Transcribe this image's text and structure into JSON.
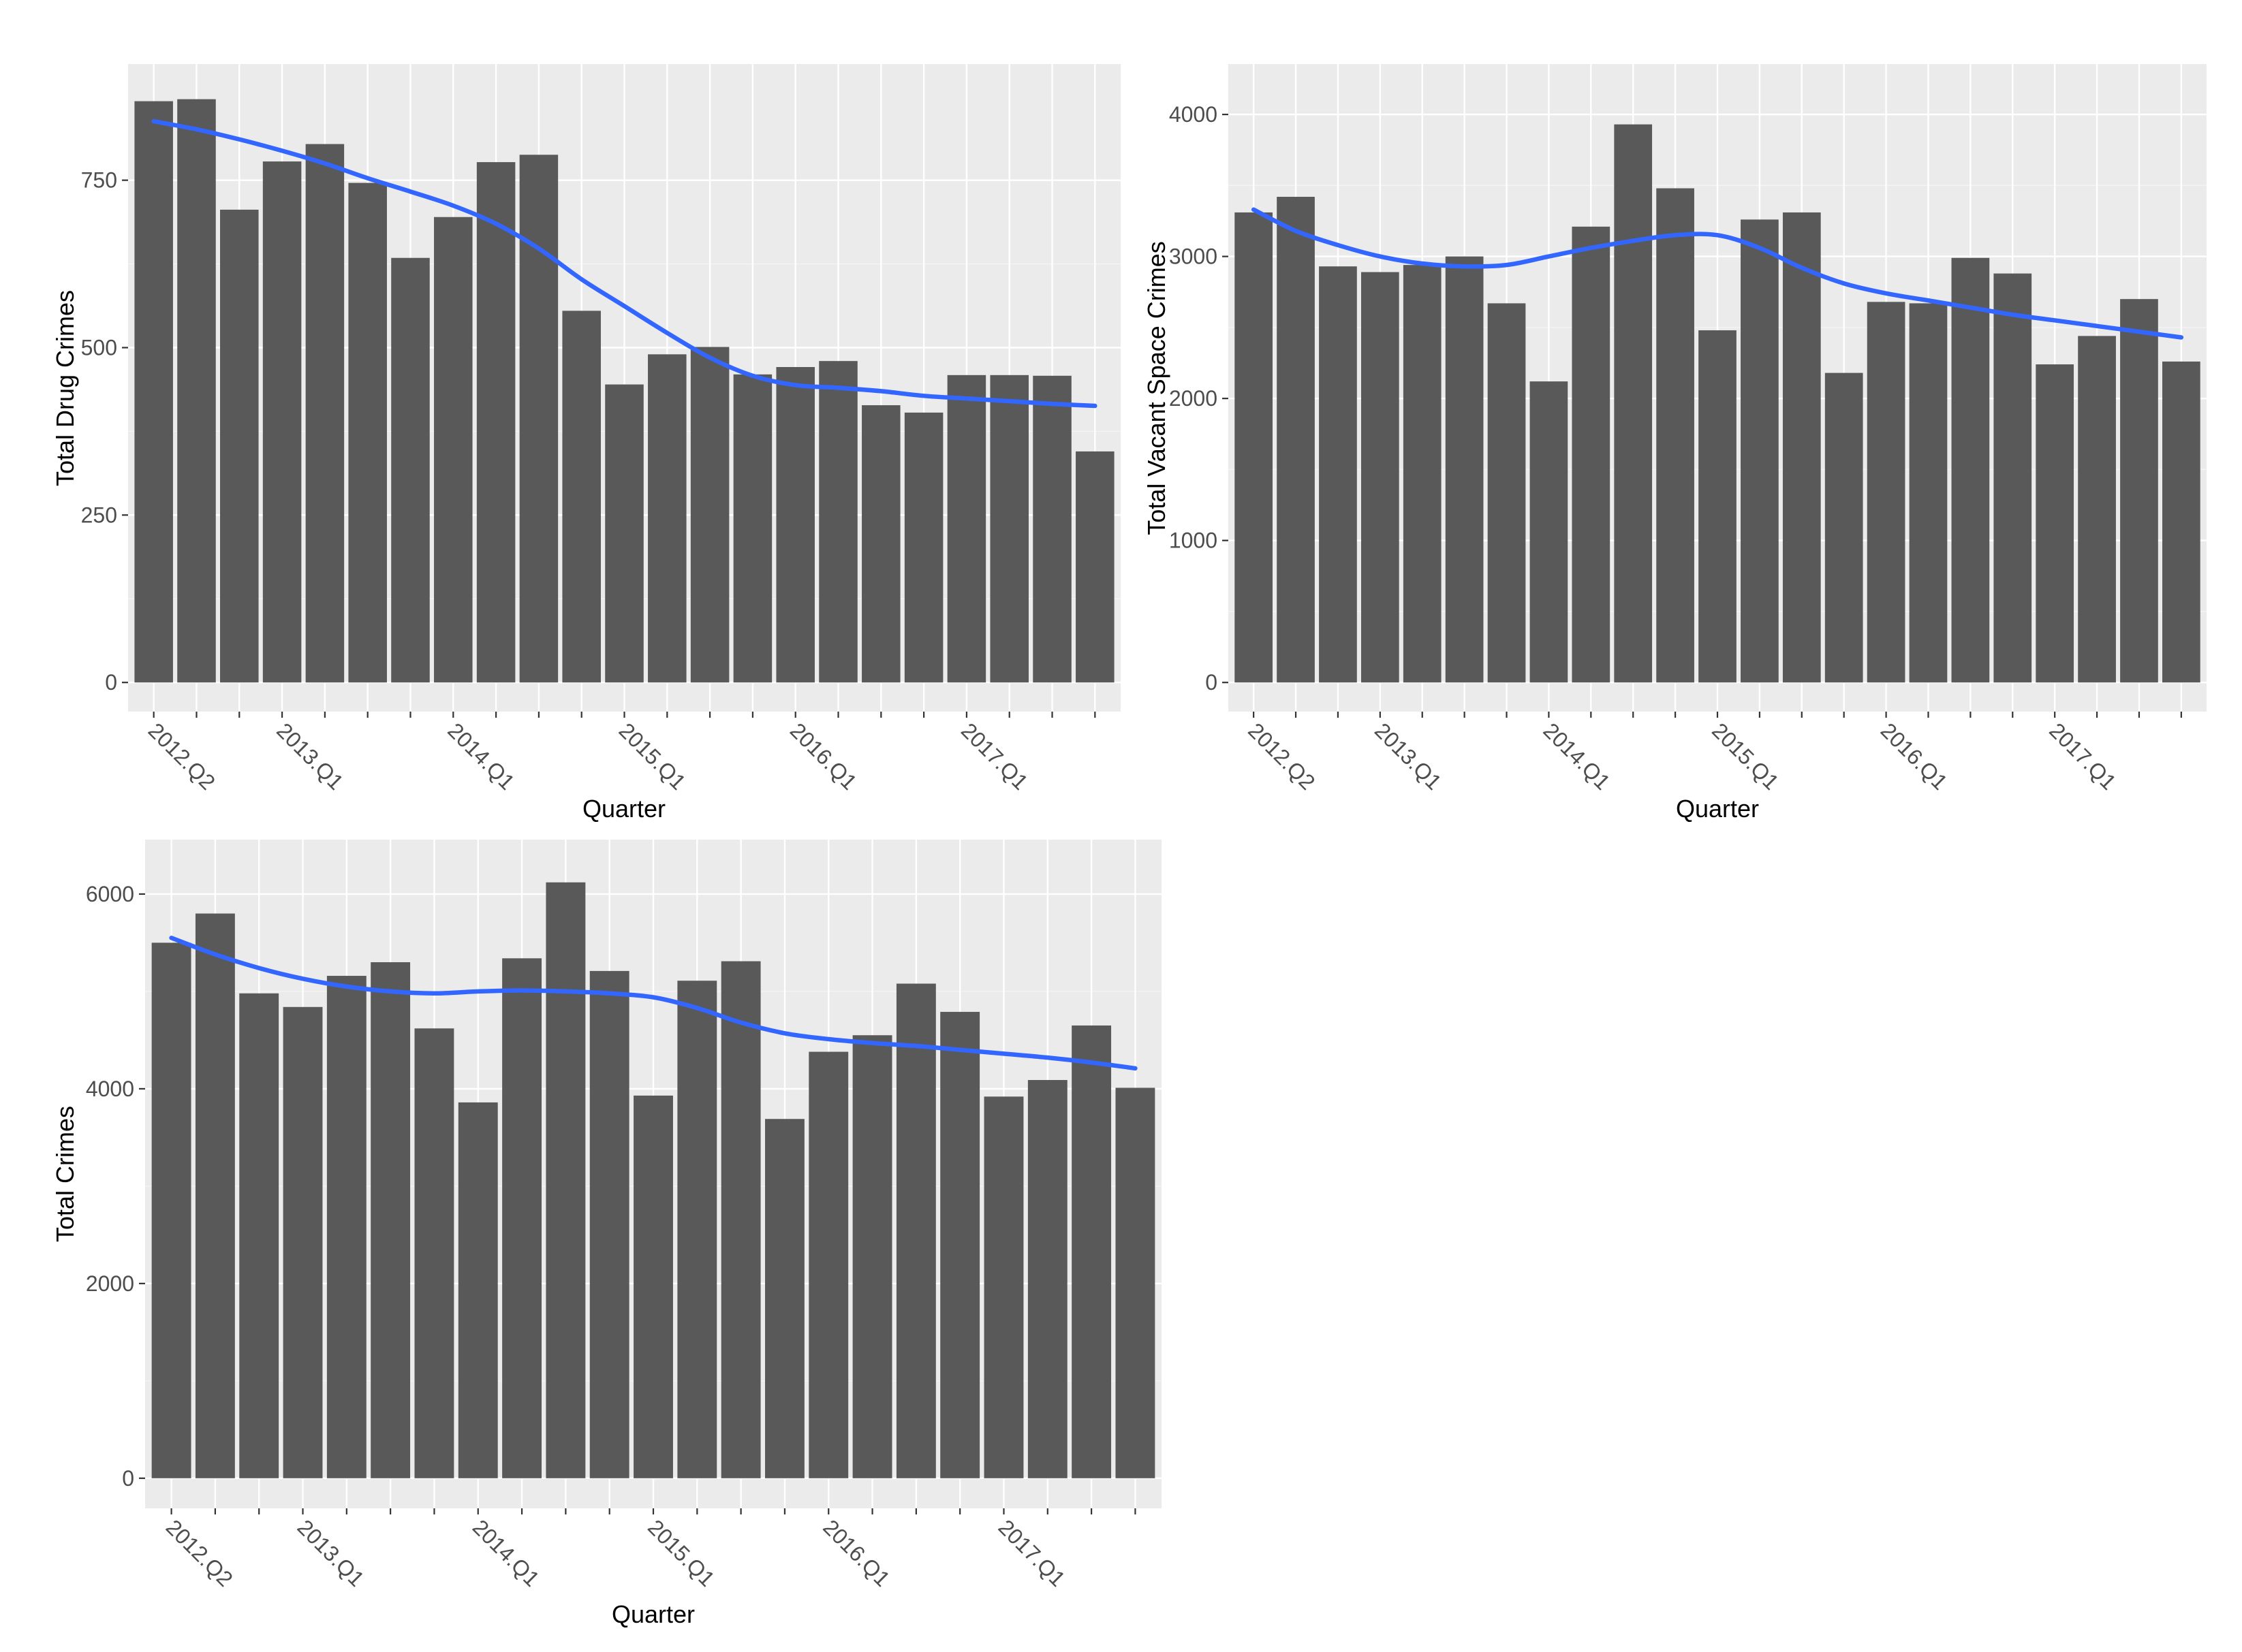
{
  "colors": {
    "panel_background": "#ebebeb",
    "grid_major": "#ffffff",
    "grid_minor": "#f5f5f5",
    "bar_fill": "#595959",
    "trend_line": "#3366ff",
    "tick_text": "#4d4d4d",
    "title_text": "#000000"
  },
  "quarters": [
    "2012.Q2",
    "2012.Q3",
    "2012.Q4",
    "2013.Q1",
    "2013.Q2",
    "2013.Q3",
    "2013.Q4",
    "2014.Q1",
    "2014.Q2",
    "2014.Q3",
    "2014.Q4",
    "2015.Q1",
    "2015.Q2",
    "2015.Q3",
    "2015.Q4",
    "2016.Q1",
    "2016.Q2",
    "2016.Q3",
    "2016.Q4",
    "2017.Q1",
    "2017.Q2",
    "2017.Q3",
    "2017.Q4"
  ],
  "shown_tick_labels": [
    "2012.Q2",
    "2013.Q1",
    "2014.Q1",
    "2015.Q1",
    "2016.Q1",
    "2017.Q1"
  ],
  "chart_data": [
    {
      "id": "drug",
      "type": "bar",
      "title": "",
      "xlabel": "Quarter",
      "ylabel": "Total Drug Crimes",
      "ylim": [
        0,
        880
      ],
      "yticks": [
        0,
        250,
        500,
        750
      ],
      "yminor": [
        125,
        375,
        625
      ],
      "grid": true,
      "values": [
        868,
        871,
        706,
        778,
        804,
        746,
        634,
        695,
        777,
        788,
        555,
        445,
        490,
        501,
        460,
        471,
        480,
        414,
        403,
        459,
        459,
        458,
        345
      ],
      "trend": [
        838,
        826,
        811,
        794,
        775,
        753,
        733,
        712,
        685,
        648,
        602,
        562,
        522,
        485,
        458,
        444,
        440,
        435,
        428,
        424,
        420,
        416,
        413
      ]
    },
    {
      "id": "vacant",
      "type": "bar",
      "title": "",
      "xlabel": "Quarter",
      "ylabel": "Total Vacant Space Crimes",
      "ylim": [
        0,
        4150
      ],
      "yticks": [
        0,
        1000,
        2000,
        3000,
        4000
      ],
      "yminor": [
        500,
        1500,
        2500,
        3500
      ],
      "grid": true,
      "values": [
        3310,
        3420,
        2930,
        2890,
        2940,
        3000,
        2670,
        2120,
        3210,
        3930,
        3480,
        2480,
        3260,
        3310,
        2180,
        2680,
        2670,
        2990,
        2880,
        2240,
        2440,
        2700,
        2260
      ],
      "trend": [
        3330,
        3180,
        3080,
        3000,
        2950,
        2930,
        2940,
        3000,
        3060,
        3110,
        3150,
        3150,
        3060,
        2920,
        2810,
        2740,
        2690,
        2640,
        2590,
        2550,
        2510,
        2470,
        2430
      ]
    },
    {
      "id": "total",
      "type": "bar",
      "title": "",
      "xlabel": "Quarter",
      "ylabel": "Total Crimes",
      "ylim": [
        0,
        6250
      ],
      "yticks": [
        0,
        2000,
        4000,
        6000
      ],
      "yminor": [
        1000,
        3000,
        5000
      ],
      "grid": true,
      "values": [
        5500,
        5800,
        4980,
        4840,
        5160,
        5300,
        4620,
        3860,
        5340,
        6120,
        5210,
        3930,
        5110,
        5310,
        3690,
        4380,
        4550,
        5080,
        4790,
        3920,
        4090,
        4650,
        4010
      ],
      "trend": [
        5550,
        5380,
        5240,
        5130,
        5050,
        5000,
        4980,
        5000,
        5010,
        5000,
        4980,
        4940,
        4830,
        4680,
        4570,
        4510,
        4470,
        4440,
        4400,
        4360,
        4320,
        4270,
        4210
      ]
    }
  ]
}
